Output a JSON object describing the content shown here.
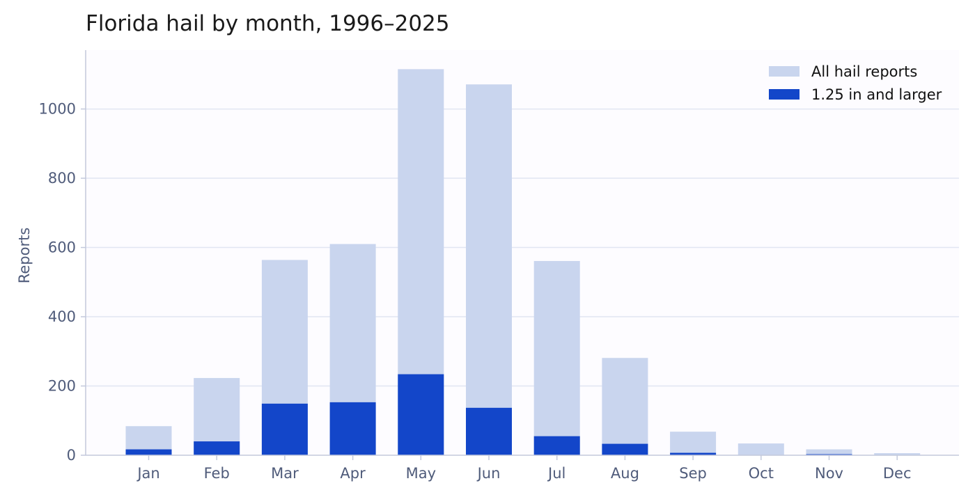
{
  "colors": {
    "all_reports": "#c9d5ee",
    "large_hail": "#1346c9",
    "grid": "#e1e5f2",
    "axis": "#c3c9dc",
    "plot_bg": "#fdfcff"
  },
  "chart_data": {
    "type": "bar",
    "title": "Florida hail by month, 1996–2025",
    "xlabel": "",
    "ylabel": "Reports",
    "ylim": [
      0,
      1170
    ],
    "yticks": [
      0,
      200,
      400,
      600,
      800,
      1000
    ],
    "grid": true,
    "legend_position": "top-right",
    "categories": [
      "Jan",
      "Feb",
      "Mar",
      "Apr",
      "May",
      "Jun",
      "Jul",
      "Aug",
      "Sep",
      "Oct",
      "Nov",
      "Dec"
    ],
    "series": [
      {
        "name": "All hail reports",
        "values": [
          84,
          223,
          564,
          610,
          1115,
          1071,
          561,
          281,
          68,
          34,
          17,
          6
        ]
      },
      {
        "name": "1.25 in and larger",
        "values": [
          17,
          40,
          149,
          153,
          234,
          137,
          55,
          33,
          7,
          1,
          3,
          1
        ]
      }
    ]
  }
}
